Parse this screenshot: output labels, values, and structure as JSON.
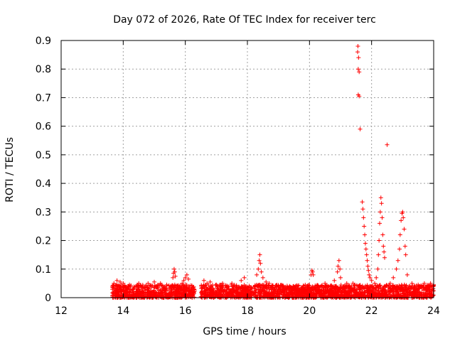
{
  "chart_data": {
    "type": "scatter",
    "title": "Day 072 of 2026, Rate Of TEC Index for receiver terc",
    "xlabel": "GPS time / hours",
    "ylabel": "ROTI / TECUs",
    "xlim": [
      12,
      24
    ],
    "ylim": [
      0,
      0.9
    ],
    "xticks": [
      12,
      14,
      16,
      18,
      20,
      22,
      24
    ],
    "xtick_labels": [
      "12",
      "14",
      "16",
      "18",
      "20",
      "22",
      "24"
    ],
    "yticks": [
      0,
      0.1,
      0.2,
      0.3,
      0.4,
      0.5,
      0.6,
      0.7,
      0.8,
      0.9
    ],
    "ytick_labels": [
      "0",
      "0.1",
      "0.2",
      "0.3",
      "0.4",
      "0.5",
      "0.6",
      "0.7",
      "0.8",
      "0.9"
    ],
    "grid": true,
    "marker": "+",
    "marker_color": "#ff0000",
    "series": [
      {
        "name": "ROTI",
        "background_band": {
          "x_start": 13.65,
          "x_end": 24.0,
          "gap": [
            16.3,
            16.5
          ],
          "y_min": 0.0,
          "y_max": 0.045
        },
        "points": [
          [
            13.7,
            0.05
          ],
          [
            13.8,
            0.06
          ],
          [
            13.9,
            0.055
          ],
          [
            14.0,
            0.05
          ],
          [
            14.2,
            0.045
          ],
          [
            14.5,
            0.05
          ],
          [
            14.8,
            0.05
          ],
          [
            15.0,
            0.055
          ],
          [
            15.2,
            0.05
          ],
          [
            15.4,
            0.045
          ],
          [
            15.6,
            0.07
          ],
          [
            15.62,
            0.085
          ],
          [
            15.64,
            0.1
          ],
          [
            15.66,
            0.09
          ],
          [
            15.68,
            0.075
          ],
          [
            15.9,
            0.05
          ],
          [
            15.95,
            0.06
          ],
          [
            16.0,
            0.07
          ],
          [
            16.05,
            0.08
          ],
          [
            16.1,
            0.065
          ],
          [
            16.6,
            0.06
          ],
          [
            16.7,
            0.05
          ],
          [
            16.8,
            0.055
          ],
          [
            17.0,
            0.045
          ],
          [
            17.2,
            0.05
          ],
          [
            17.5,
            0.05
          ],
          [
            17.8,
            0.06
          ],
          [
            17.9,
            0.07
          ],
          [
            18.3,
            0.08
          ],
          [
            18.35,
            0.1
          ],
          [
            18.38,
            0.13
          ],
          [
            18.4,
            0.15
          ],
          [
            18.42,
            0.12
          ],
          [
            18.45,
            0.09
          ],
          [
            18.5,
            0.07
          ],
          [
            18.6,
            0.055
          ],
          [
            18.7,
            0.05
          ],
          [
            19.0,
            0.04
          ],
          [
            19.5,
            0.035
          ],
          [
            19.8,
            0.04
          ],
          [
            20.05,
            0.08
          ],
          [
            20.08,
            0.095
          ],
          [
            20.1,
            0.09
          ],
          [
            20.12,
            0.08
          ],
          [
            20.5,
            0.05
          ],
          [
            20.8,
            0.06
          ],
          [
            20.9,
            0.09
          ],
          [
            20.92,
            0.11
          ],
          [
            20.95,
            0.13
          ],
          [
            20.98,
            0.1
          ],
          [
            21.0,
            0.07
          ],
          [
            21.2,
            0.05
          ],
          [
            21.4,
            0.05
          ],
          [
            21.55,
            0.86
          ],
          [
            21.56,
            0.88
          ],
          [
            21.57,
            0.8
          ],
          [
            21.58,
            0.84
          ],
          [
            21.6,
            0.79
          ],
          [
            21.57,
            0.71
          ],
          [
            21.6,
            0.705
          ],
          [
            21.63,
            0.59
          ],
          [
            21.7,
            0.335
          ],
          [
            21.72,
            0.31
          ],
          [
            21.74,
            0.28
          ],
          [
            21.76,
            0.25
          ],
          [
            21.78,
            0.22
          ],
          [
            21.8,
            0.19
          ],
          [
            21.82,
            0.17
          ],
          [
            21.84,
            0.15
          ],
          [
            21.86,
            0.13
          ],
          [
            21.88,
            0.11
          ],
          [
            21.9,
            0.095
          ],
          [
            21.92,
            0.08
          ],
          [
            21.95,
            0.07
          ],
          [
            22.0,
            0.06
          ],
          [
            22.1,
            0.05
          ],
          [
            22.15,
            0.07
          ],
          [
            22.2,
            0.1
          ],
          [
            22.22,
            0.15
          ],
          [
            22.24,
            0.2
          ],
          [
            22.26,
            0.26
          ],
          [
            22.28,
            0.3
          ],
          [
            22.3,
            0.35
          ],
          [
            22.32,
            0.33
          ],
          [
            22.34,
            0.28
          ],
          [
            22.36,
            0.22
          ],
          [
            22.38,
            0.18
          ],
          [
            22.4,
            0.16
          ],
          [
            22.42,
            0.14
          ],
          [
            22.5,
            0.535
          ],
          [
            22.6,
            0.05
          ],
          [
            22.7,
            0.07
          ],
          [
            22.8,
            0.1
          ],
          [
            22.85,
            0.13
          ],
          [
            22.9,
            0.17
          ],
          [
            22.92,
            0.22
          ],
          [
            22.95,
            0.27
          ],
          [
            22.98,
            0.295
          ],
          [
            23.0,
            0.3
          ],
          [
            23.02,
            0.28
          ],
          [
            23.05,
            0.24
          ],
          [
            23.08,
            0.18
          ],
          [
            23.1,
            0.15
          ],
          [
            23.15,
            0.08
          ],
          [
            23.3,
            0.05
          ],
          [
            23.5,
            0.045
          ],
          [
            23.7,
            0.05
          ],
          [
            23.9,
            0.05
          ],
          [
            24.0,
            0.045
          ]
        ]
      }
    ]
  }
}
